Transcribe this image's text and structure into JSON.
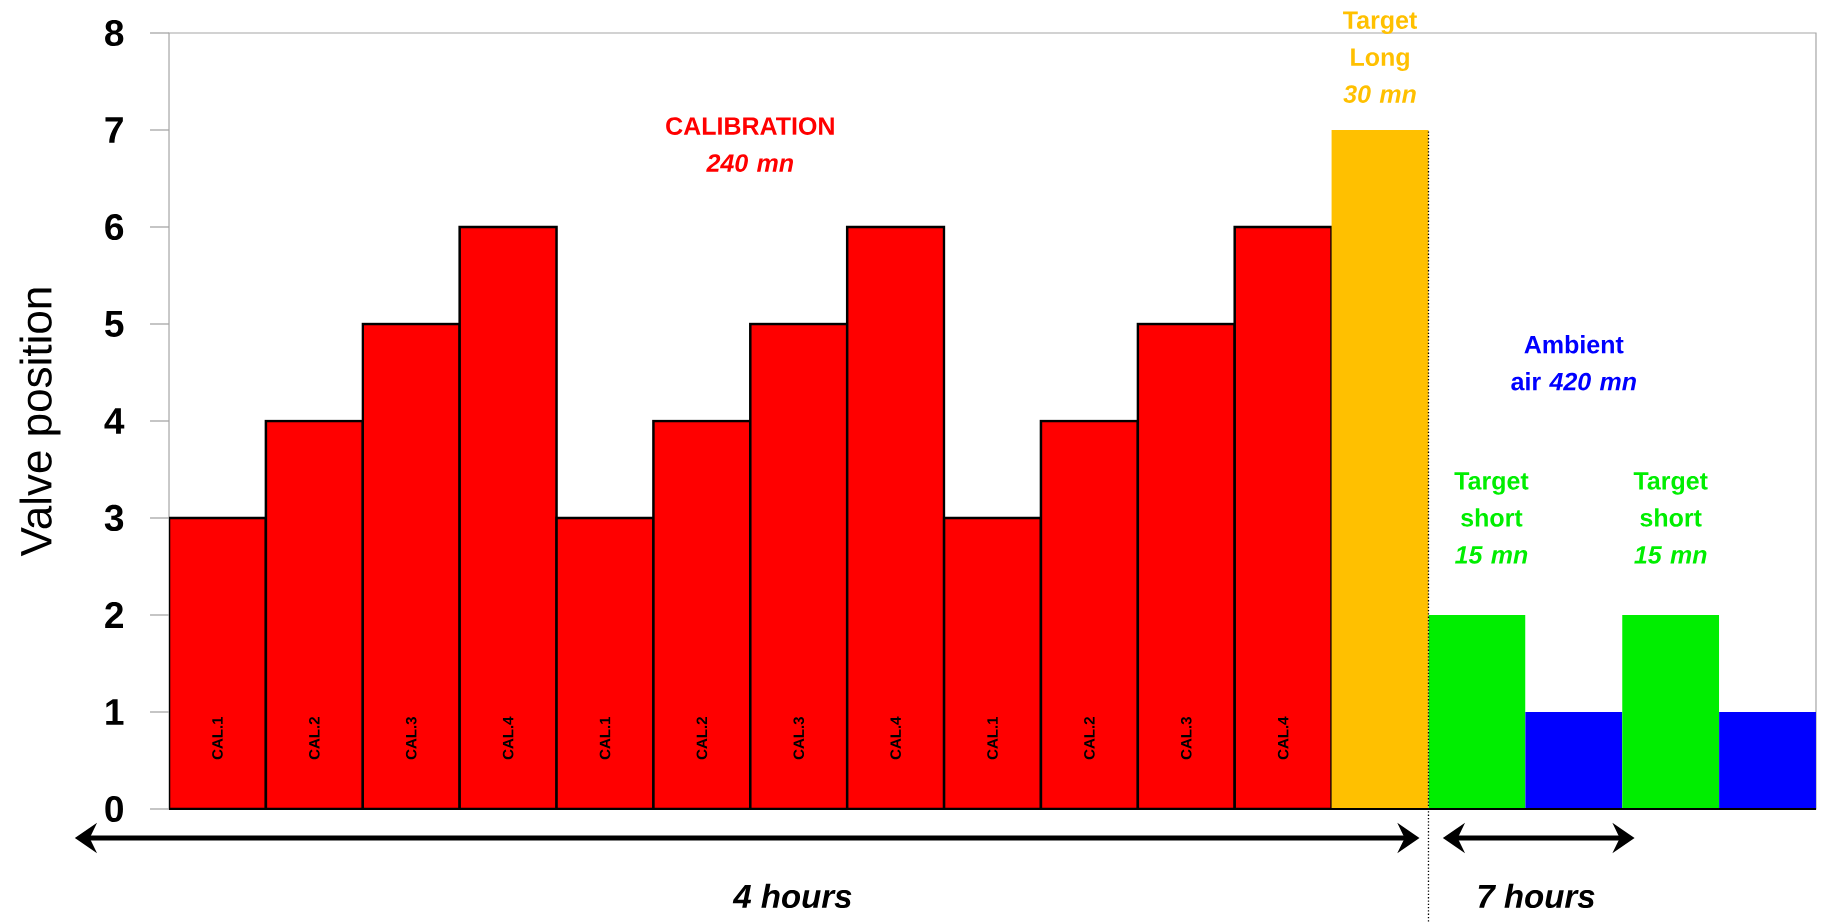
{
  "chart_data": {
    "type": "bar",
    "ylabel": "Valve position",
    "ylim": [
      0,
      8
    ],
    "yticks": [
      0,
      1,
      2,
      3,
      4,
      5,
      6,
      7,
      8
    ],
    "categories": [
      "CAL.1",
      "CAL.2",
      "CAL.3",
      "CAL.4",
      "CAL.1",
      "CAL.2",
      "CAL.3",
      "CAL.4",
      "CAL.1",
      "CAL.2",
      "CAL.3",
      "CAL.4",
      null,
      null,
      null,
      null,
      null
    ],
    "values": [
      3,
      4,
      5,
      6,
      3,
      4,
      5,
      6,
      3,
      4,
      5,
      6,
      7,
      2,
      1,
      2,
      1
    ],
    "colors": [
      "#ff0000",
      "#ff0000",
      "#ff0000",
      "#ff0000",
      "#ff0000",
      "#ff0000",
      "#ff0000",
      "#ff0000",
      "#ff0000",
      "#ff0000",
      "#ff0000",
      "#ff0000",
      "#ffc000",
      "#00ee00",
      "#0000ff",
      "#00ee00",
      "#0000ff"
    ],
    "annotations": [
      "CALIBRATION\n*240 mn*",
      "Target\nLong\n*30 mn*",
      "Target\nshort\n*15 mn*",
      "Ambient air\n*420 mn*",
      "Target\nshort\n*15 mn*",
      "4 hours",
      "7 hours"
    ]
  }
}
